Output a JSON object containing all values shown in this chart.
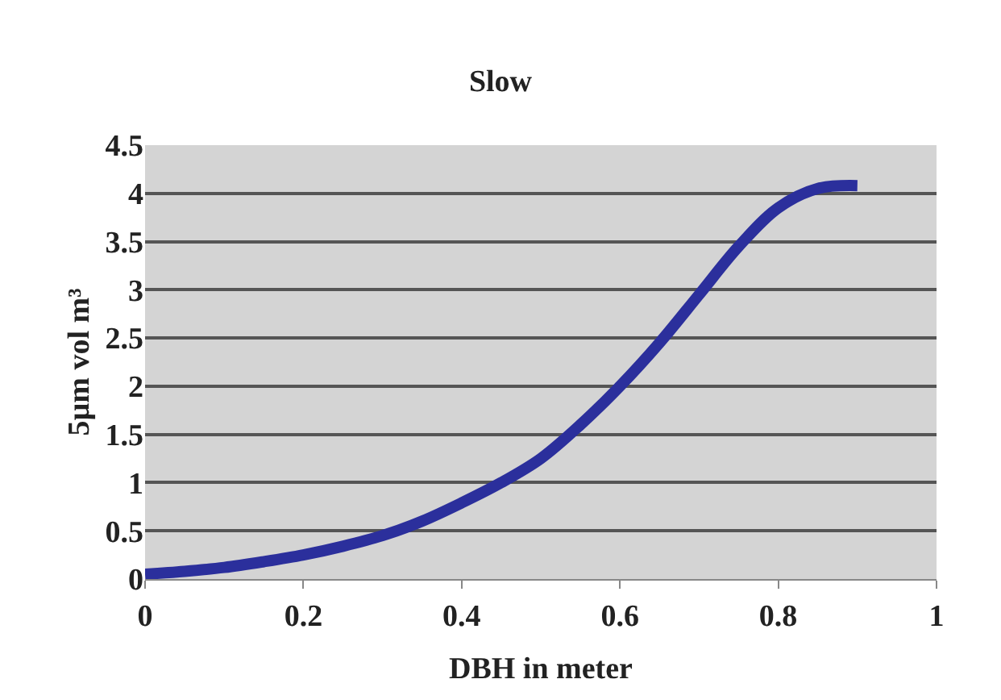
{
  "chart_data": {
    "type": "line",
    "title": "Slow",
    "xlabel": "DBH in meter",
    "ylabel": "5µm vol m³",
    "x": [
      0,
      0.05,
      0.1,
      0.15,
      0.2,
      0.25,
      0.3,
      0.35,
      0.4,
      0.45,
      0.5,
      0.55,
      0.6,
      0.65,
      0.7,
      0.75,
      0.8,
      0.85,
      0.9
    ],
    "series": [
      {
        "color": "#2b2f9c",
        "values": [
          0.05,
          0.08,
          0.12,
          0.18,
          0.25,
          0.34,
          0.45,
          0.6,
          0.79,
          1.0,
          1.25,
          1.6,
          2.0,
          2.45,
          2.95,
          3.45,
          3.85,
          4.05,
          4.08
        ]
      }
    ],
    "xlim": [
      0,
      1
    ],
    "xticks": [
      0,
      0.2,
      0.4,
      0.6,
      0.8,
      1
    ],
    "ylim": [
      0,
      4.5
    ],
    "yticks": [
      0,
      0.5,
      1,
      1.5,
      2,
      2.5,
      3,
      3.5,
      4,
      4.5
    ],
    "grid": "y",
    "marker": "none",
    "line_style": "solid"
  }
}
